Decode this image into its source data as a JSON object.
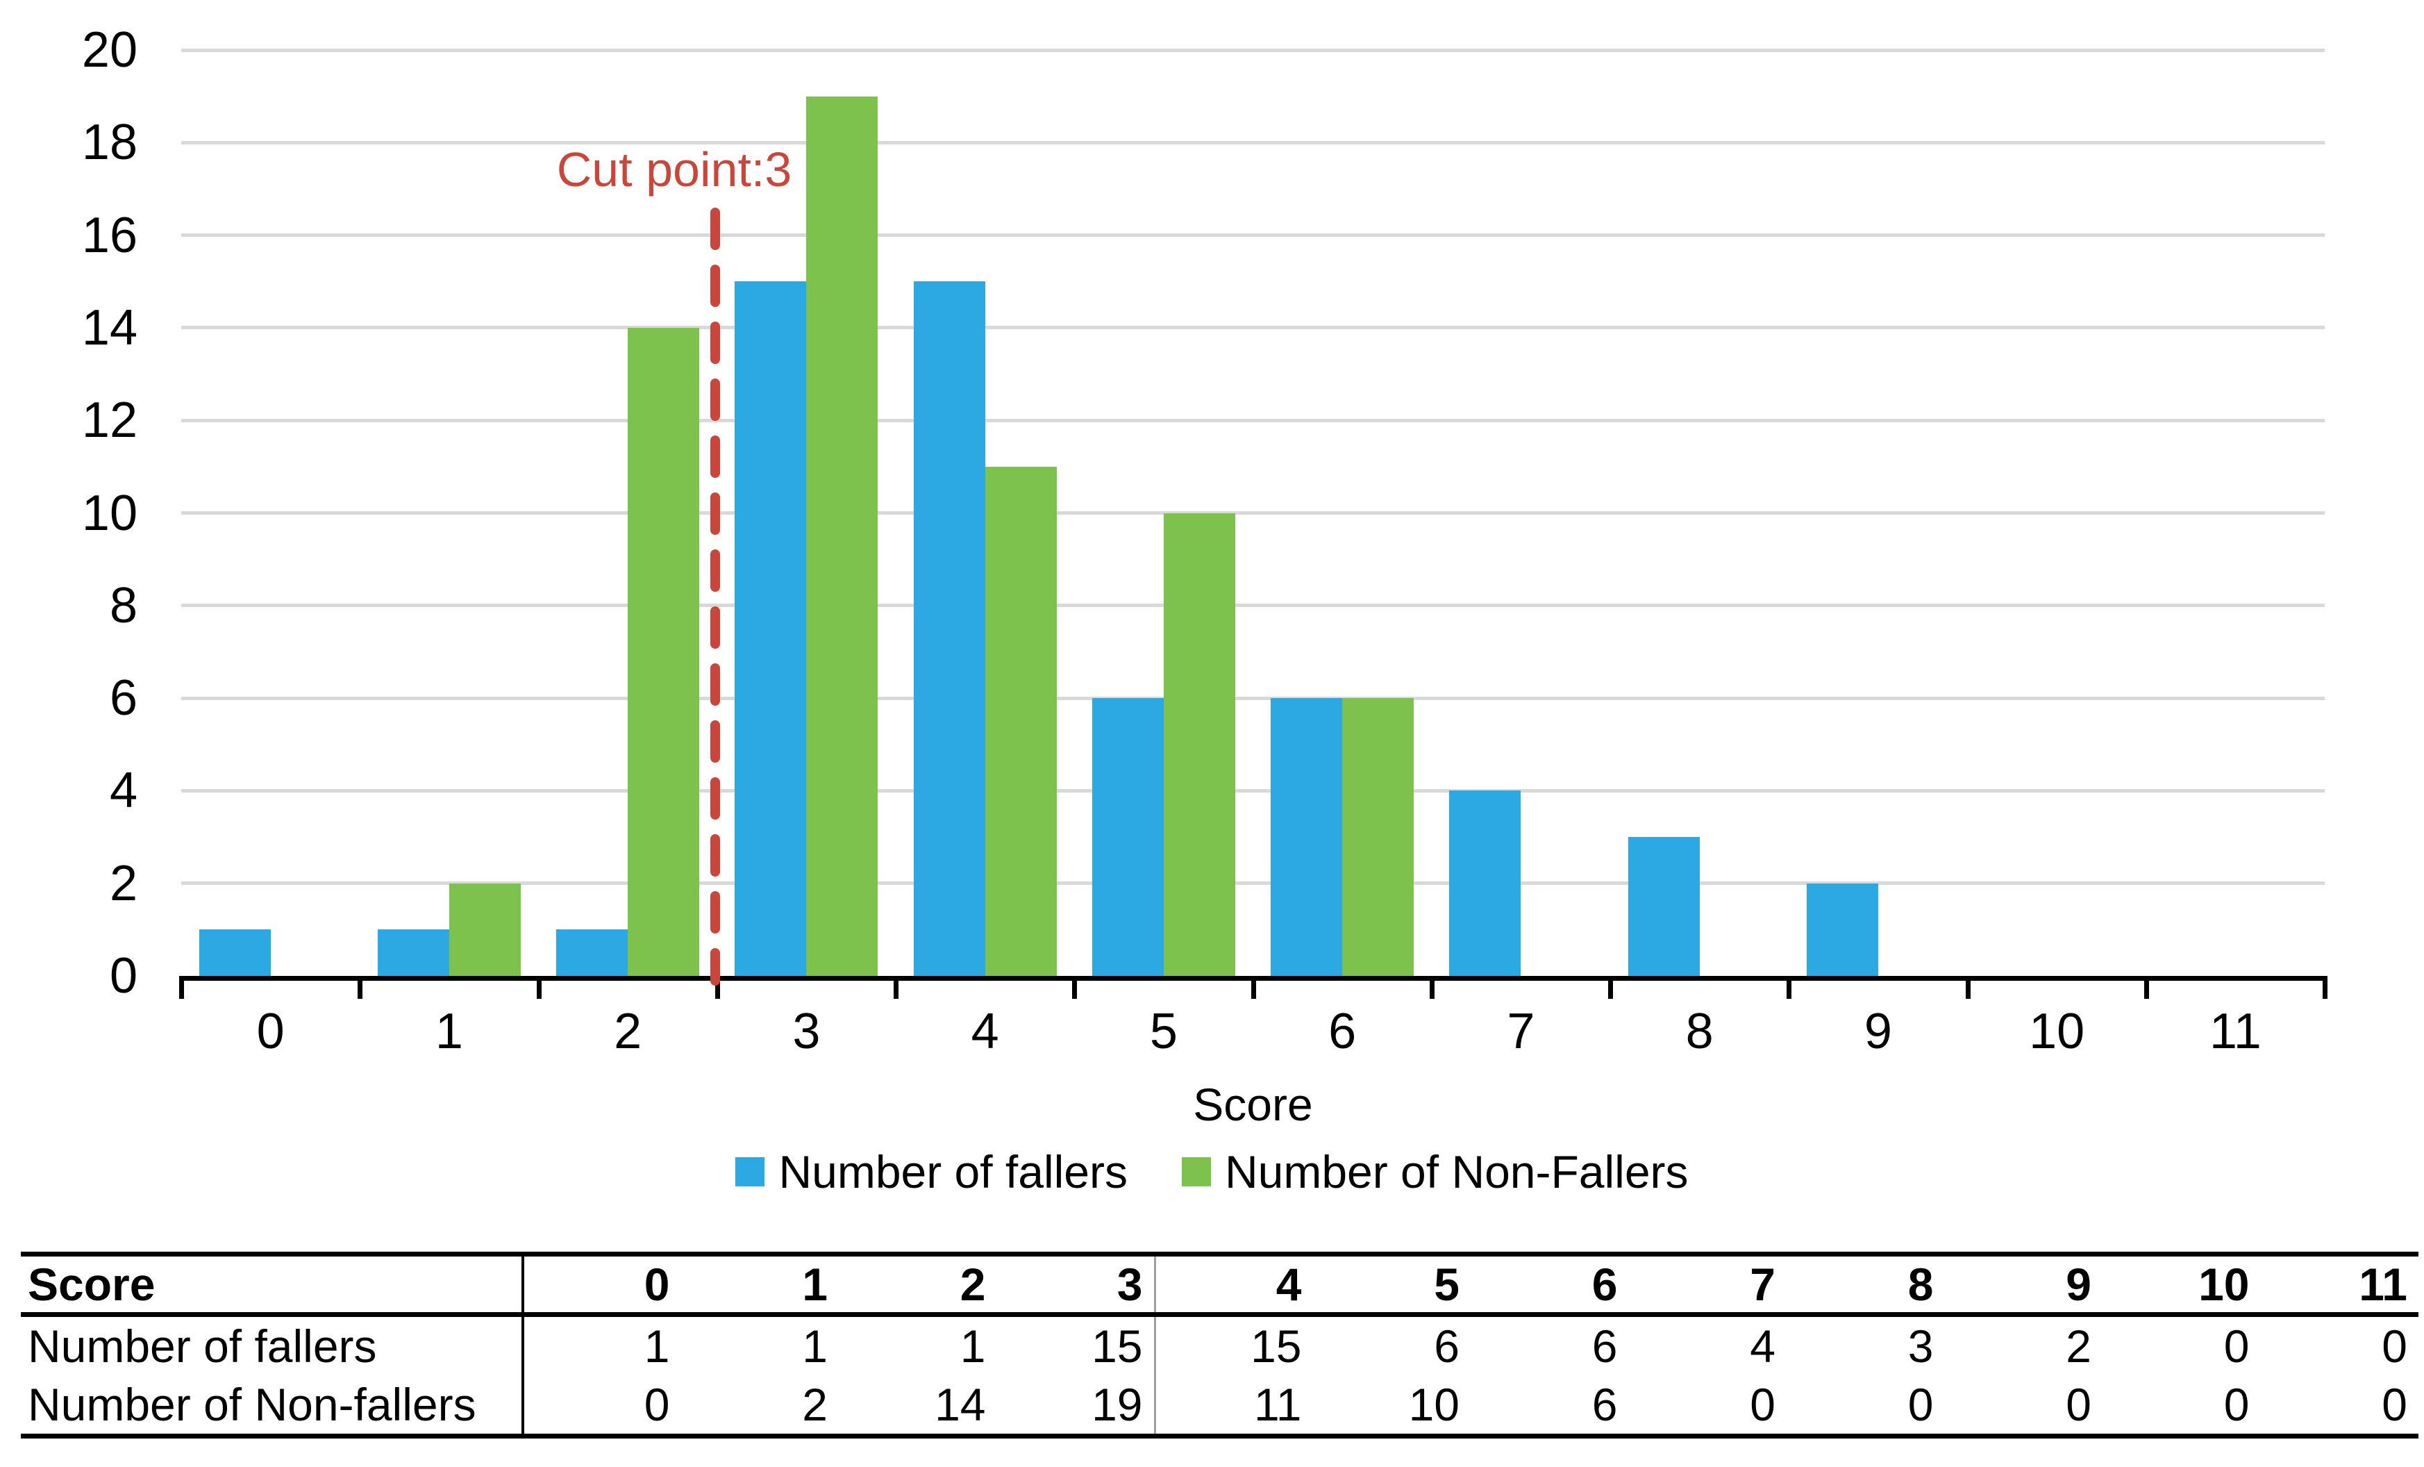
{
  "colors": {
    "fallers_blue": "#2CA9E3",
    "nonfallers_green": "#7DC24C",
    "cut_red": "#CB463A",
    "gridline_gray": "#D9D9D9",
    "axis_black": "#000000",
    "table_divider_gray": "#A0A0A0"
  },
  "chart_data": {
    "type": "bar",
    "title": "",
    "xlabel": "Score",
    "ylabel": "",
    "categories": [
      "0",
      "1",
      "2",
      "3",
      "4",
      "5",
      "6",
      "7",
      "8",
      "9",
      "10",
      "11"
    ],
    "y_tick_labels": [
      "0",
      "2",
      "4",
      "6",
      "8",
      "10",
      "12",
      "14",
      "16",
      "18",
      "20"
    ],
    "ylim": [
      0,
      20
    ],
    "ytick_step": 2,
    "grid": "horizontal",
    "legend_position": "bottom",
    "series": [
      {
        "name": "Number of fallers",
        "color": "#2CA9E3",
        "values": [
          1,
          1,
          1,
          15,
          15,
          6,
          6,
          4,
          3,
          2,
          0,
          0
        ]
      },
      {
        "name": "Number of Non-Fallers",
        "color": "#7DC24C",
        "values": [
          0,
          2,
          14,
          19,
          11,
          10,
          6,
          0,
          0,
          0,
          0,
          0
        ]
      }
    ],
    "cut_line": {
      "label": "Cut point:3",
      "between_categories": [
        "2",
        "3"
      ],
      "color": "#CB463A",
      "style": "dashed"
    }
  },
  "table": {
    "header_label": "Score",
    "header_values": [
      "0",
      "1",
      "2",
      "3",
      "4",
      "5",
      "6",
      "7",
      "8",
      "9",
      "10",
      "11"
    ],
    "cut_divider_after_column": "2",
    "rows": [
      {
        "label": "Number of fallers",
        "values": [
          "1",
          "1",
          "1",
          "15",
          "15",
          "6",
          "6",
          "4",
          "3",
          "2",
          "0",
          "0"
        ]
      },
      {
        "label": "Number of Non-fallers",
        "values": [
          "0",
          "2",
          "14",
          "19",
          "11",
          "10",
          "6",
          "0",
          "0",
          "0",
          "0",
          "0"
        ]
      }
    ]
  }
}
